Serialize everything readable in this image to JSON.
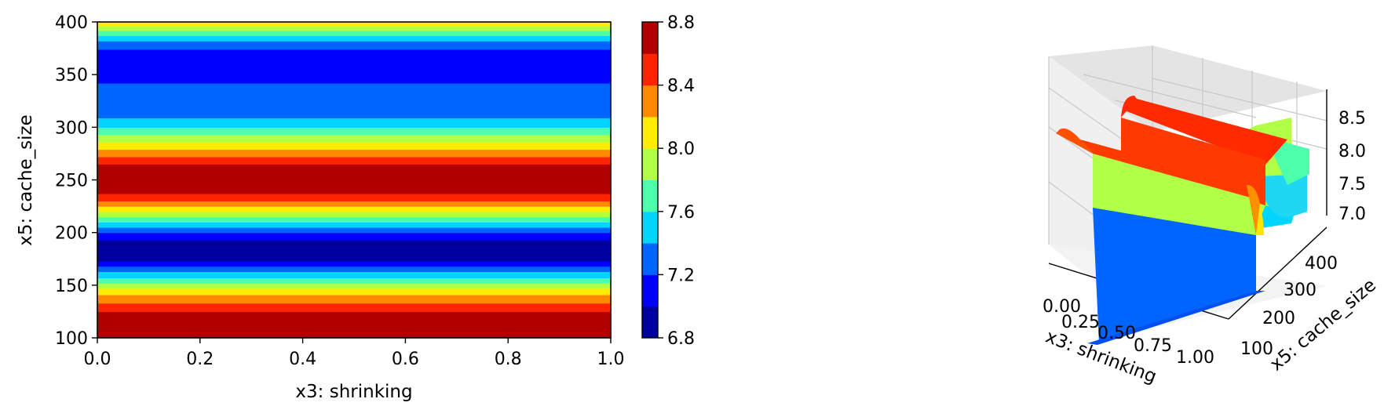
{
  "chart_data": [
    {
      "type": "heatmap",
      "subtype": "filled-contour",
      "xlabel": "x3: shrinking",
      "ylabel": "x5: cache_size",
      "xlim": [
        0.0,
        1.0
      ],
      "ylim": [
        100,
        400
      ],
      "xticks": [
        "0.0",
        "0.2",
        "0.4",
        "0.6",
        "0.8",
        "1.0"
      ],
      "yticks": [
        "100",
        "150",
        "200",
        "250",
        "300",
        "350",
        "400"
      ],
      "colormap": "jet",
      "levels": [
        6.8,
        7.0,
        7.2,
        7.4,
        7.6,
        7.8,
        8.0,
        8.2,
        8.4,
        8.6,
        8.8
      ],
      "level_colors": [
        "#00009f",
        "#0000ff",
        "#0064ff",
        "#00d5ff",
        "#4dffaa",
        "#b1ff46",
        "#ffec00",
        "#ff8900",
        "#ff2500",
        "#b20000"
      ],
      "bands": [
        {
          "y": [
            100,
            125
          ],
          "level": 9
        },
        {
          "y": [
            125,
            133
          ],
          "level": 8
        },
        {
          "y": [
            133,
            141
          ],
          "level": 7
        },
        {
          "y": [
            141,
            147
          ],
          "level": 6
        },
        {
          "y": [
            147,
            152
          ],
          "level": 5
        },
        {
          "y": [
            152,
            157
          ],
          "level": 4
        },
        {
          "y": [
            157,
            163
          ],
          "level": 3
        },
        {
          "y": [
            163,
            168
          ],
          "level": 2
        },
        {
          "y": [
            168,
            173
          ],
          "level": 1
        },
        {
          "y": [
            173,
            193
          ],
          "level": 0
        },
        {
          "y": [
            193,
            200
          ],
          "level": 1
        },
        {
          "y": [
            200,
            205
          ],
          "level": 2
        },
        {
          "y": [
            205,
            210
          ],
          "level": 3
        },
        {
          "y": [
            210,
            215
          ],
          "level": 4
        },
        {
          "y": [
            215,
            220
          ],
          "level": 5
        },
        {
          "y": [
            220,
            225
          ],
          "level": 6
        },
        {
          "y": [
            225,
            230
          ],
          "level": 7
        },
        {
          "y": [
            230,
            237
          ],
          "level": 8
        },
        {
          "y": [
            237,
            265
          ],
          "level": 9
        },
        {
          "y": [
            265,
            272
          ],
          "level": 8
        },
        {
          "y": [
            272,
            279
          ],
          "level": 7
        },
        {
          "y": [
            279,
            286
          ],
          "level": 6
        },
        {
          "y": [
            286,
            293
          ],
          "level": 5
        },
        {
          "y": [
            293,
            300
          ],
          "level": 4
        },
        {
          "y": [
            300,
            309
          ],
          "level": 3
        },
        {
          "y": [
            309,
            342
          ],
          "level": 2
        },
        {
          "y": [
            342,
            374
          ],
          "level": 1
        },
        {
          "y": [
            374,
            382
          ],
          "level": 2
        },
        {
          "y": [
            382,
            387
          ],
          "level": 3
        },
        {
          "y": [
            387,
            392
          ],
          "level": 4
        },
        {
          "y": [
            392,
            396
          ],
          "level": 5
        },
        {
          "y": [
            396,
            400
          ],
          "level": 6
        }
      ],
      "colorbar": {
        "ticks": [
          "6.8",
          "7.2",
          "7.6",
          "8.0",
          "8.4",
          "8.8"
        ],
        "range": [
          6.8,
          8.8
        ]
      }
    },
    {
      "type": "surface3d",
      "xlabel": "x3: shrinking",
      "ylabel": "x5: cache_size",
      "xticks": [
        "0.00",
        "0.25",
        "0.50",
        "0.75",
        "1.00"
      ],
      "yticks": [
        "100",
        "200",
        "300",
        "400"
      ],
      "zticks": [
        "7.0",
        "7.5",
        "8.0",
        "8.5"
      ],
      "colormap": "jet",
      "grid": true
    }
  ]
}
